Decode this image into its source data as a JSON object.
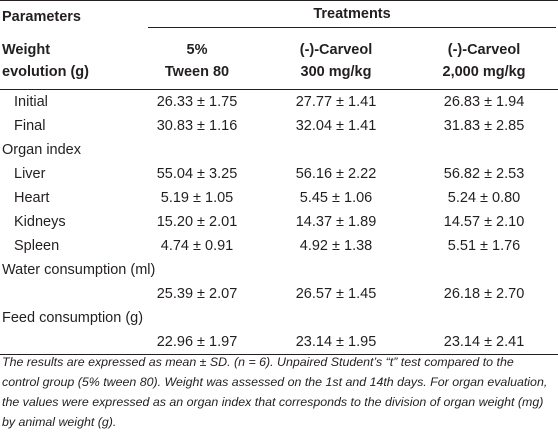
{
  "table": {
    "header": {
      "parameters": "Parameters",
      "treatments": "Treatments",
      "row_label": [
        "Weight",
        "evolution (g)"
      ],
      "groups": [
        {
          "line1": "5%",
          "line2": "Tween 80"
        },
        {
          "line1": "(-)-Carveol",
          "line2": "300 mg/kg"
        },
        {
          "line1": "(-)-Carveol",
          "line2": "2,000 mg/kg"
        }
      ]
    },
    "rows": [
      {
        "label": "Initial",
        "values": [
          "26.33 ± 1.75",
          "27.77 ± 1.41",
          "26.83 ± 1.94"
        ]
      },
      {
        "label": "Final",
        "values": [
          "30.83 ± 1.16",
          "32.04 ± 1.41",
          "31.83 ± 2.85"
        ]
      },
      {
        "section": "Organ index"
      },
      {
        "label": "Liver",
        "values": [
          "55.04 ± 3.25",
          "56.16 ± 2.22",
          "56.82 ± 2.53"
        ]
      },
      {
        "label": "Heart",
        "values": [
          "5.19 ± 1.05",
          "5.45 ± 1.06",
          "5.24 ± 0.80"
        ]
      },
      {
        "label": "Kidneys",
        "values": [
          "15.20 ± 2.01",
          "14.37 ± 1.89",
          "14.57 ± 2.10"
        ]
      },
      {
        "label": "Spleen",
        "values": [
          "4.74 ± 0.91",
          "4.92 ± 1.38",
          "5.51 ± 1.76"
        ]
      },
      {
        "section": "Water consumption (ml)"
      },
      {
        "label": "",
        "values": [
          "25.39 ± 2.07",
          "26.57 ± 1.45",
          "26.18 ± 2.70"
        ]
      },
      {
        "section": "Feed consumption (g)"
      },
      {
        "label": "",
        "values": [
          "22.96 ± 1.97",
          "23.14 ± 1.95",
          "23.14 ± 2.41"
        ]
      }
    ]
  },
  "footnote": "The results are expressed as mean ± SD. (n = 6). Unpaired Student’s “t” test compared to the control group (5% tween 80). Weight was assessed on the 1st and 14th days. For organ evaluation, the values were expressed as an organ index that corresponds to the division of organ weight (mg) by animal weight (g)."
}
